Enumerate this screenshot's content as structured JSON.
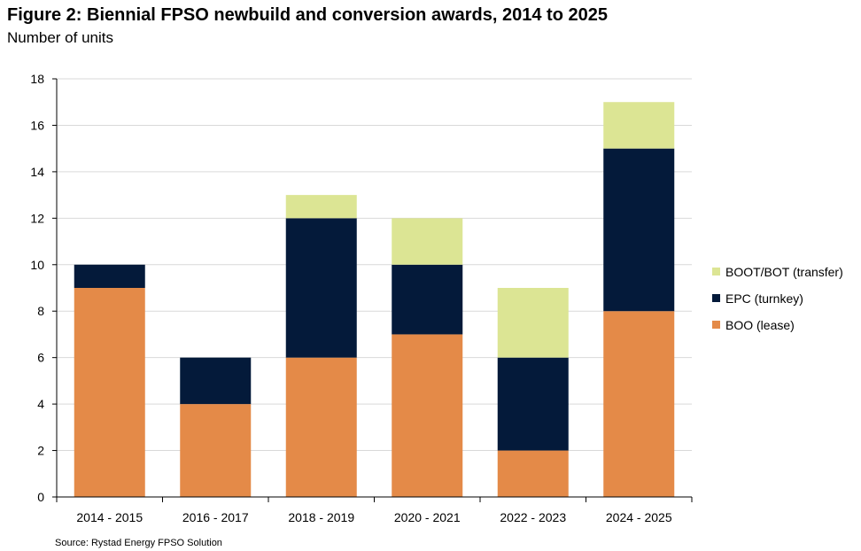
{
  "title": "Figure 2:  Biennial FPSO newbuild and conversion awards, 2014 to 2025",
  "subtitle": "Number of units",
  "source": "Source: Rystad Energy FPSO Solution",
  "chart_data": {
    "type": "bar",
    "stacked": true,
    "categories": [
      "2014 - 2015",
      "2016 - 2017",
      "2018 - 2019",
      "2020 - 2021",
      "2022 - 2023",
      "2024 - 2025"
    ],
    "series": [
      {
        "name": "BOO (lease)",
        "color": "#E48A48",
        "values": [
          9,
          4,
          6,
          7,
          2,
          8
        ]
      },
      {
        "name": "EPC (turnkey)",
        "color": "#041A3A",
        "values": [
          1,
          2,
          6,
          3,
          4,
          7
        ]
      },
      {
        "name": "BOOT/BOT (transfer)",
        "color": "#DCE594",
        "values": [
          0,
          0,
          1,
          2,
          3,
          2
        ]
      }
    ],
    "ylim": [
      0,
      18
    ],
    "yticks": [
      0,
      2,
      4,
      6,
      8,
      10,
      12,
      14,
      16,
      18
    ],
    "grid": true,
    "legend": "right"
  }
}
